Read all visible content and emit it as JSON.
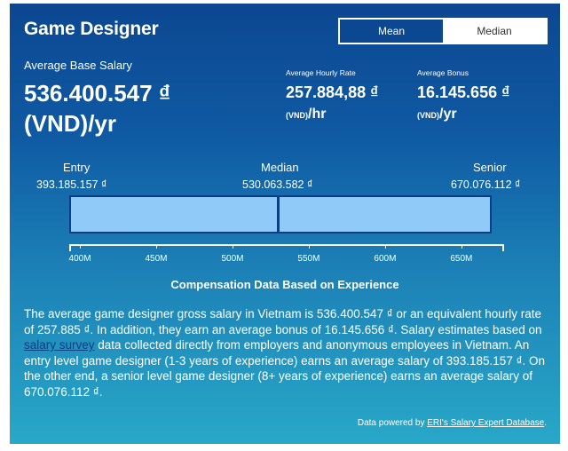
{
  "title": "Game Designer",
  "toggle": {
    "mean_label": "Mean",
    "median_label": "Median",
    "selected": "Mean"
  },
  "base": {
    "label": "Average Base Salary",
    "amount": "536.400.547 ₫",
    "unit": "(VND)/yr"
  },
  "hourly": {
    "label": "Average Hourly Rate",
    "amount": "257.884,88 ₫",
    "unit_small": "(VND)",
    "unit_suffix": "/hr"
  },
  "bonus": {
    "label": "Average Bonus",
    "amount": "16.145.656 ₫",
    "unit_small": "(VND)",
    "unit_suffix": "/yr"
  },
  "range": {
    "entry": {
      "label": "Entry",
      "value": "393.185.157 ₫"
    },
    "median": {
      "label": "Median",
      "value": "530.063.582 ₫"
    },
    "senior": {
      "label": "Senior",
      "value": "670.076.112 ₫"
    },
    "bar_min": 393185157,
    "bar_median": 530063582,
    "bar_max": 670076112,
    "axis_min": 393000000,
    "axis_max": 678000000,
    "ticks": [
      400,
      450,
      500,
      550,
      600,
      650
    ],
    "tick_labels": [
      "400M",
      "450M",
      "500M",
      "550M",
      "600M",
      "650M"
    ]
  },
  "caption": "Compensation Data Based on Experience",
  "paragraph": {
    "part1": "The average game designer gross salary in Vietnam is 536.400.547 ₫ or an equivalent hourly rate of 257.885 ₫. In addition, they earn an average bonus of 16.145.656 ₫. Salary estimates based on ",
    "link": "salary survey",
    "part2": " data collected directly from employers and anonymous employees in Vietnam. An entry level game designer (1-3 years of experience) earns an average salary of 393.185.157 ₫. On the other end, a senior level game designer (8+ years of experience) earns an average salary of 670.076.112 ₫."
  },
  "powered": {
    "prefix": "Data powered by ",
    "link": "ERI's Salary Expert Database",
    "suffix": "."
  },
  "colors": {
    "card_top": "#0c4791",
    "card_bottom": "#28a8c8",
    "bar_fill": "#90caf9",
    "bar_border": "#0a3e86"
  }
}
